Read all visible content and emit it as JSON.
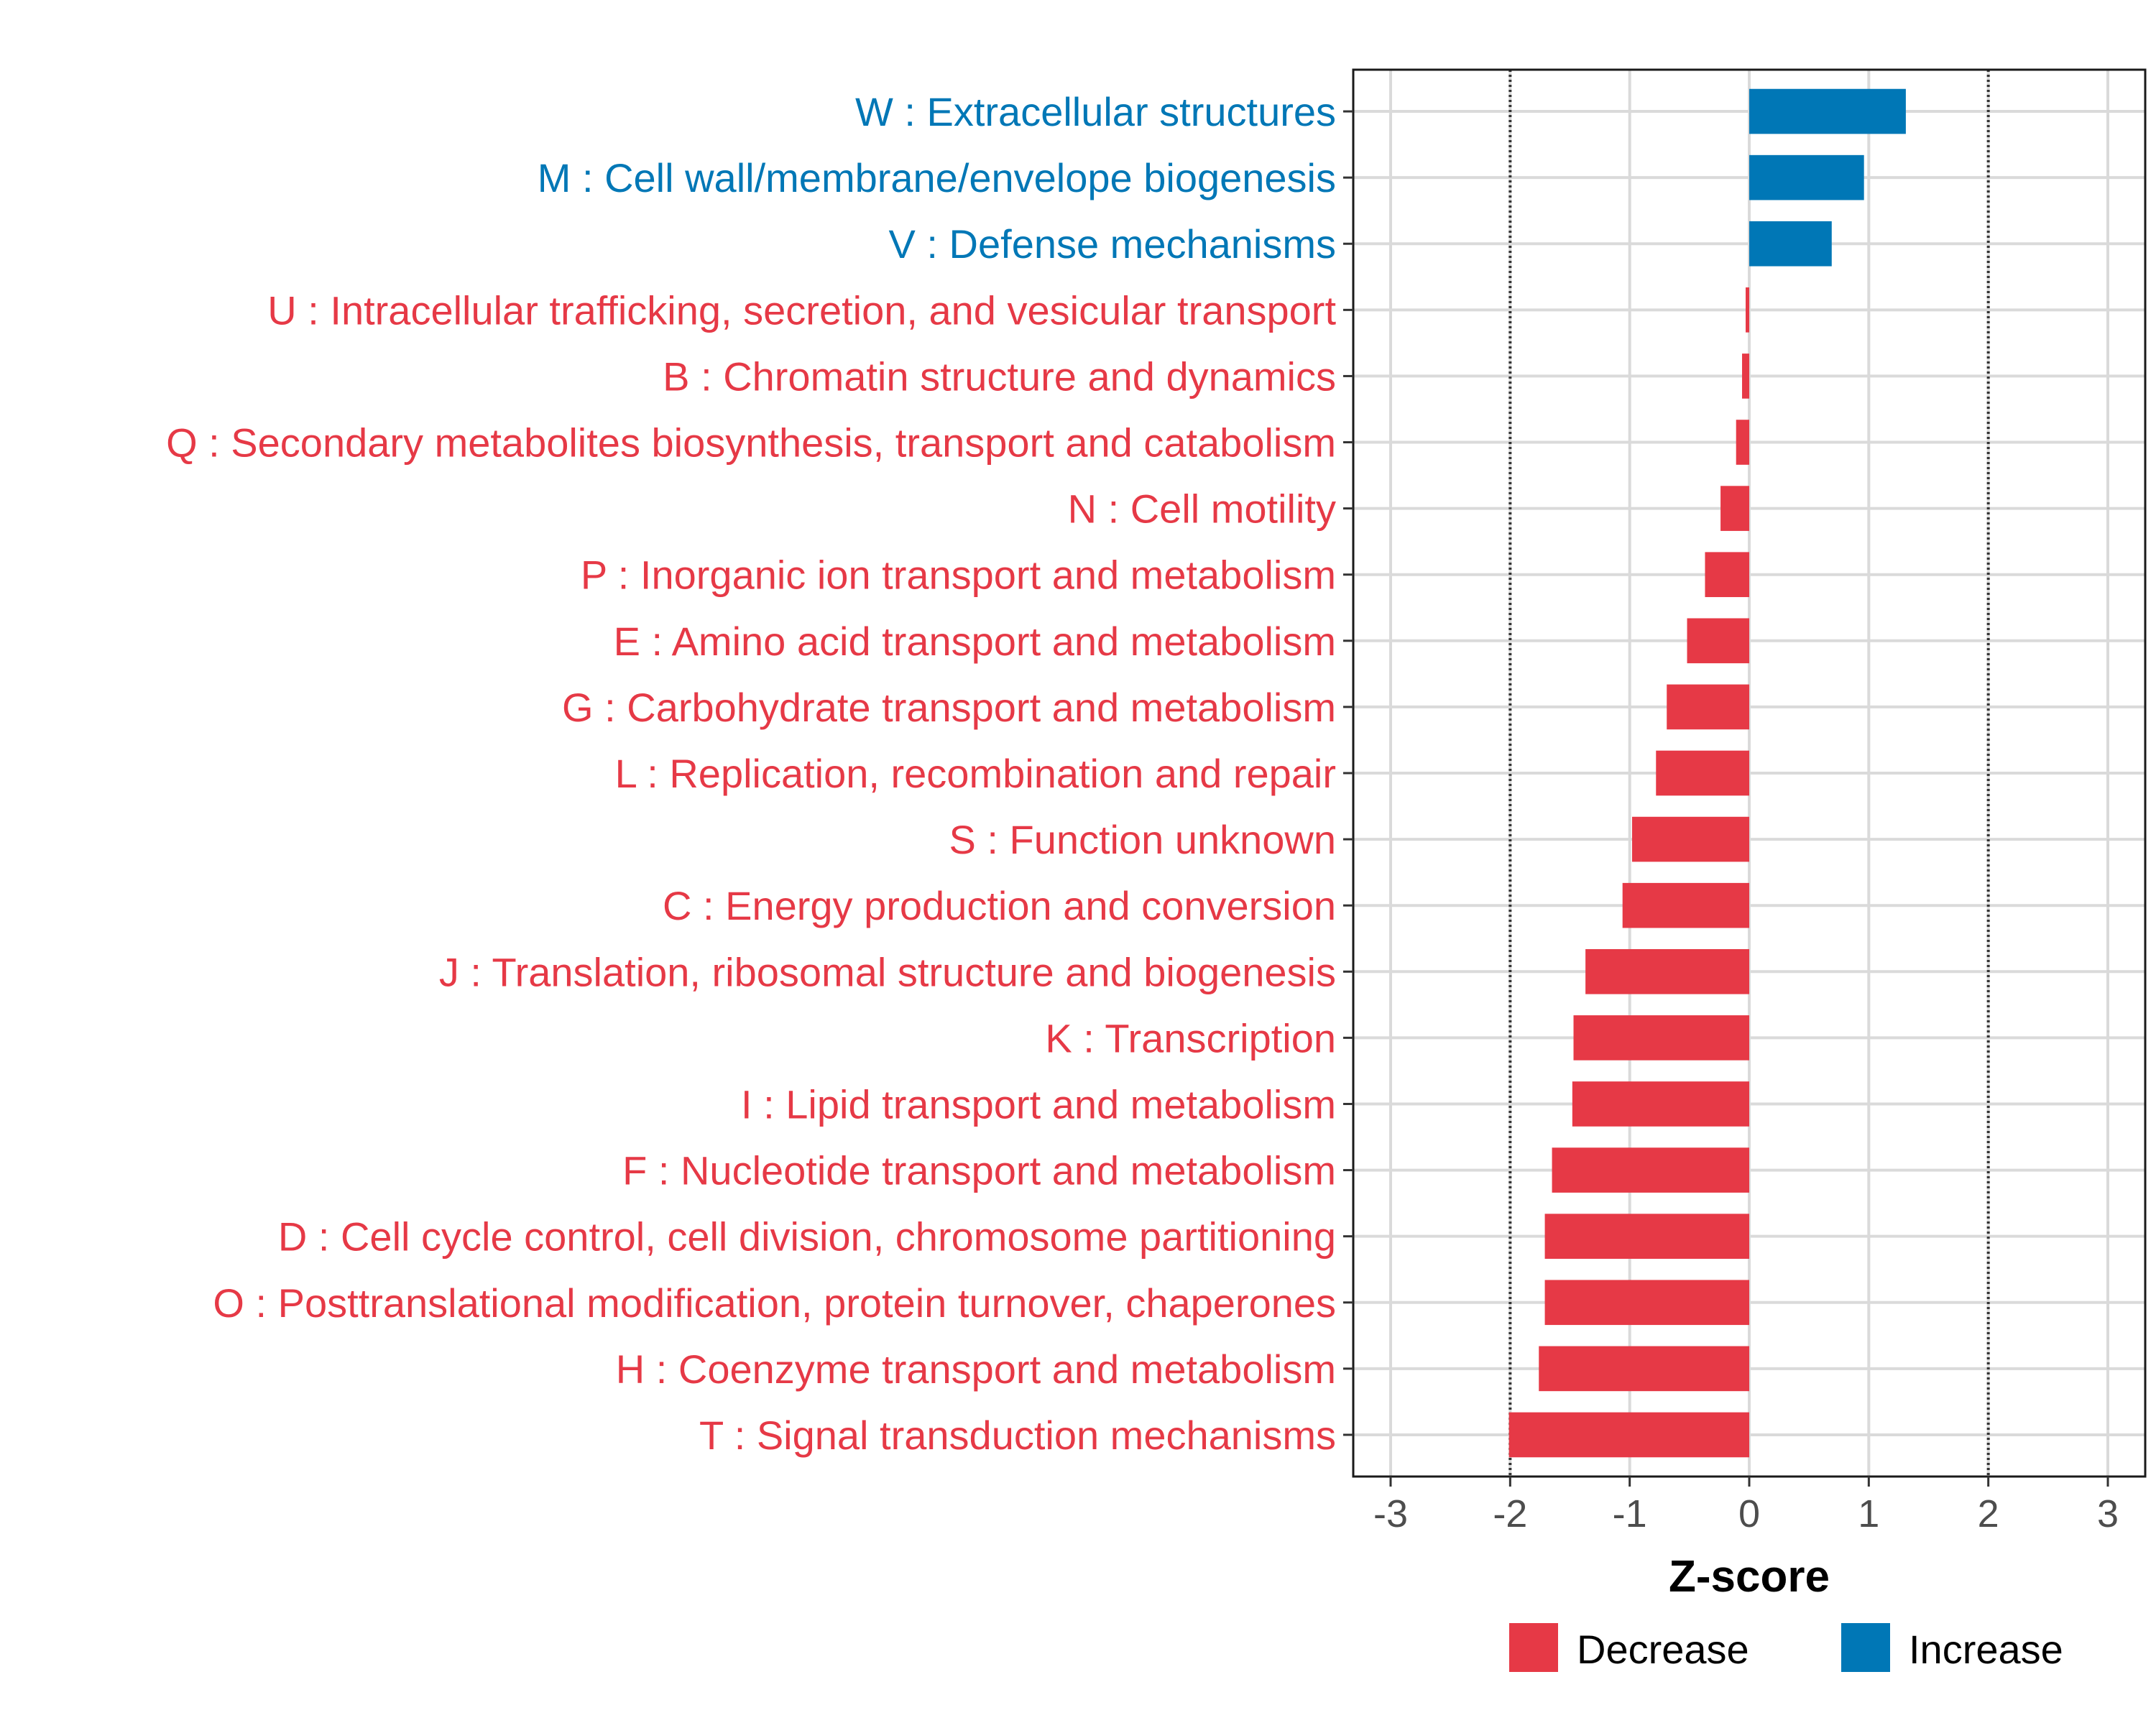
{
  "chart_data": {
    "type": "bar",
    "orientation": "horizontal",
    "title": "",
    "xlabel": "Z-score",
    "ylabel": "",
    "xlim": [
      -3.0,
      3.0
    ],
    "x_ticks": [
      -3,
      -2,
      -1,
      0,
      1,
      2,
      3
    ],
    "x_tick_labels": [
      "-3",
      "-2",
      "-1",
      "0",
      "1",
      "2",
      "3"
    ],
    "reference_lines": [
      -2,
      2
    ],
    "grid": true,
    "legend_position": "bottom",
    "legend": [
      {
        "name": "Decrease",
        "color": "#e63946"
      },
      {
        "name": "Increase",
        "color": "#0077b6"
      }
    ],
    "colors": {
      "Decrease": "#e63946",
      "Increase": "#0077b6"
    },
    "categories": [
      "W : Extracellular structures",
      "M : Cell wall/membrane/envelope biogenesis",
      "V : Defense mechanisms",
      "U : Intracellular trafficking, secretion, and vesicular transport",
      "B : Chromatin structure and dynamics",
      "Q : Secondary metabolites biosynthesis, transport and catabolism",
      "N : Cell motility",
      "P : Inorganic ion transport and metabolism",
      "E : Amino acid transport and metabolism",
      "G : Carbohydrate transport and metabolism",
      "L : Replication, recombination and repair",
      "S : Function unknown",
      "C : Energy production and conversion",
      "J : Translation, ribosomal structure and biogenesis",
      "K : Transcription",
      "I : Lipid transport and metabolism",
      "F : Nucleotide transport and metabolism",
      "D : Cell cycle control, cell division, chromosome partitioning",
      "O : Posttranslational modification, protein turnover, chaperones",
      "H : Coenzyme transport and metabolism",
      "T : Signal transduction mechanisms"
    ],
    "values": [
      1.31,
      0.96,
      0.69,
      -0.03,
      -0.06,
      -0.11,
      -0.24,
      -0.37,
      -0.52,
      -0.69,
      -0.78,
      -0.98,
      -1.06,
      -1.37,
      -1.47,
      -1.48,
      -1.65,
      -1.71,
      -1.71,
      -1.76,
      -2.01
    ],
    "groups": [
      "Increase",
      "Increase",
      "Increase",
      "Decrease",
      "Decrease",
      "Decrease",
      "Decrease",
      "Decrease",
      "Decrease",
      "Decrease",
      "Decrease",
      "Decrease",
      "Decrease",
      "Decrease",
      "Decrease",
      "Decrease",
      "Decrease",
      "Decrease",
      "Decrease",
      "Decrease",
      "Decrease"
    ]
  }
}
